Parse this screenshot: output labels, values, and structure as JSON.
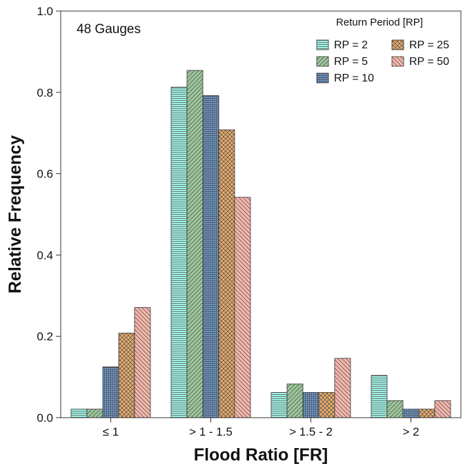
{
  "chart_data": {
    "type": "bar",
    "title": "",
    "annotation": "48 Gauges",
    "xlabel": "Flood Ratio [FR]",
    "ylabel": "Relative Frequency",
    "categories": [
      "≤ 1",
      "> 1 - 1.5",
      "> 1.5 - 2",
      "> 2"
    ],
    "ylim": [
      0,
      1.0
    ],
    "yticks": [
      0.0,
      0.2,
      0.4,
      0.6,
      0.8,
      1.0
    ],
    "ytick_labels": [
      "0.0",
      "0.2",
      "0.4",
      "0.6",
      "0.8",
      "1.0"
    ],
    "grid": false,
    "legend": {
      "title": "Return Period [RP]",
      "placement": "top-right",
      "columns": 2
    },
    "series": [
      {
        "name": "RP = 2",
        "values": [
          0.021,
          0.813,
          0.062,
          0.104
        ],
        "color": "#9ff2e6",
        "pattern": "horizontal-lines"
      },
      {
        "name": "RP = 5",
        "values": [
          0.021,
          0.854,
          0.083,
          0.042
        ],
        "color": "#9cc79a",
        "pattern": "diagonal-lines"
      },
      {
        "name": "RP = 10",
        "values": [
          0.125,
          0.792,
          0.062,
          0.021
        ],
        "color": "#6f9ed6",
        "pattern": "crosshatch"
      },
      {
        "name": "RP = 25",
        "values": [
          0.208,
          0.708,
          0.062,
          0.021
        ],
        "color": "#e8ad6c",
        "pattern": "diagonal-crosshatch"
      },
      {
        "name": "RP = 50",
        "values": [
          0.271,
          0.542,
          0.146,
          0.042
        ],
        "color": "#f6b7ac",
        "pattern": "reverse-diagonal-lines"
      }
    ]
  }
}
